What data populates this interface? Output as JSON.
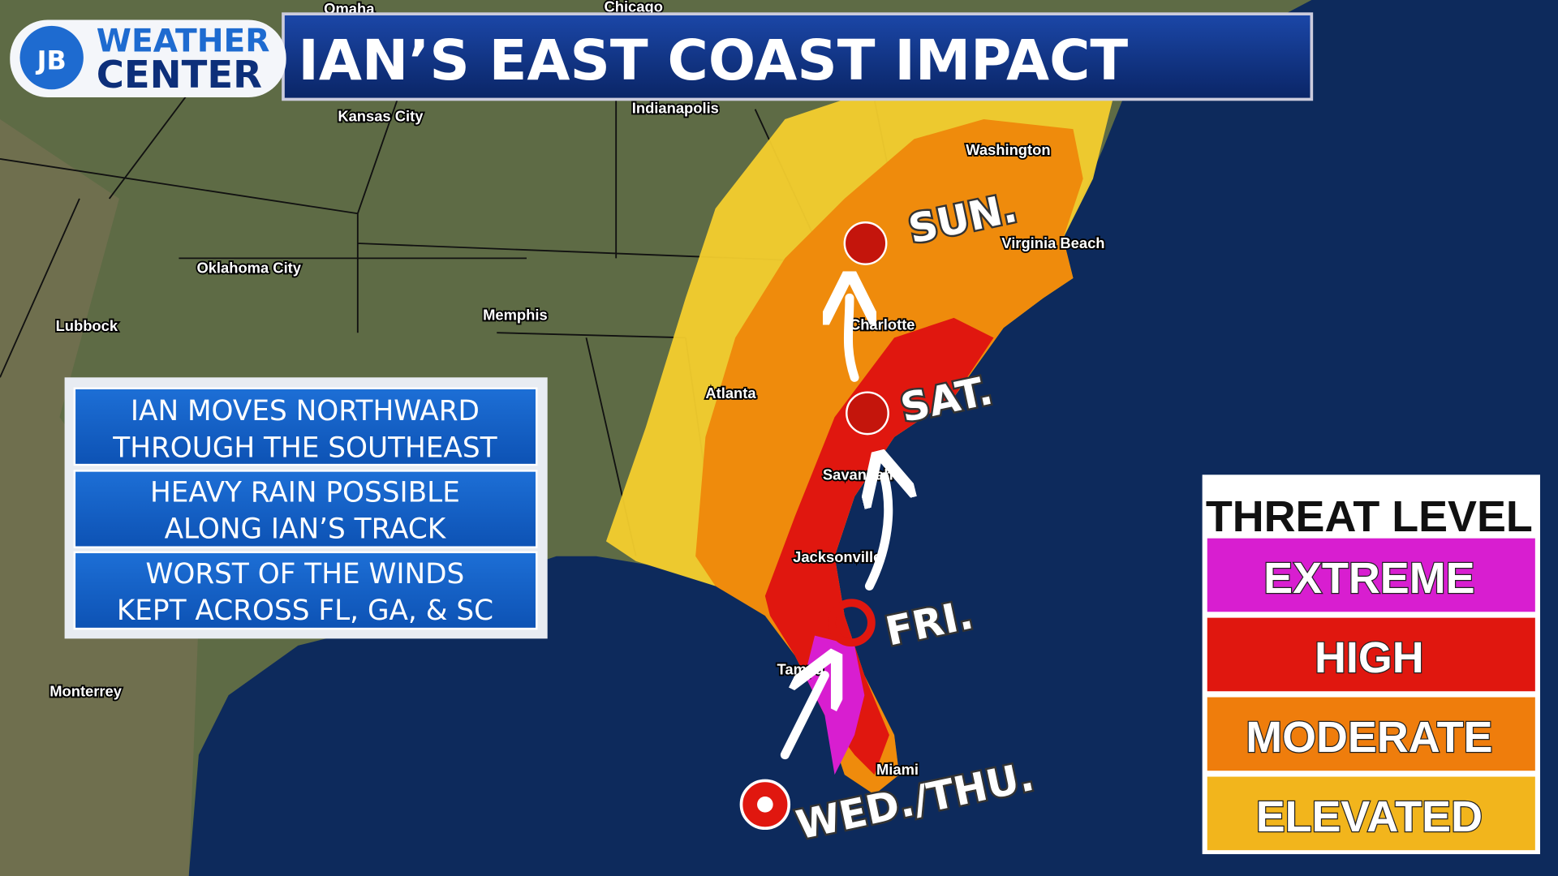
{
  "header": {
    "logo_initials": "JB",
    "logo_line1": "WEATHER",
    "logo_line2": "CENTER",
    "title": "IAN’S EAST COAST IMPACT"
  },
  "cities": [
    "Omaha",
    "Chicago",
    "Kansas City",
    "Indianapolis",
    "Washington",
    "Virginia Beach",
    "Oklahoma City",
    "Lubbock",
    "Memphis",
    "Charlotte",
    "Atlanta",
    "Savannah",
    "Jacksonville",
    "Tampa",
    "Miami",
    "Monterrey"
  ],
  "info_boxes": [
    {
      "lines": [
        "IAN MOVES NORTHWARD",
        "THROUGH THE SOUTHEAST"
      ]
    },
    {
      "lines": [
        "HEAVY RAIN POSSIBLE",
        "ALONG IAN’S TRACK"
      ]
    },
    {
      "lines": [
        "WORST OF THE WINDS",
        "KEPT ACROSS FL, GA, & SC"
      ]
    }
  ],
  "track_labels": [
    "WED./THU.",
    "FRI.",
    "SAT.",
    "SUN."
  ],
  "legend": {
    "title": "THREAT LEVEL",
    "levels": [
      {
        "label": "EXTREME",
        "color": "#d81ed0"
      },
      {
        "label": "HIGH",
        "color": "#e0170f"
      },
      {
        "label": "MODERATE",
        "color": "#ef7d0c"
      },
      {
        "label": "ELEVATED",
        "color": "#f2b51c"
      }
    ]
  }
}
